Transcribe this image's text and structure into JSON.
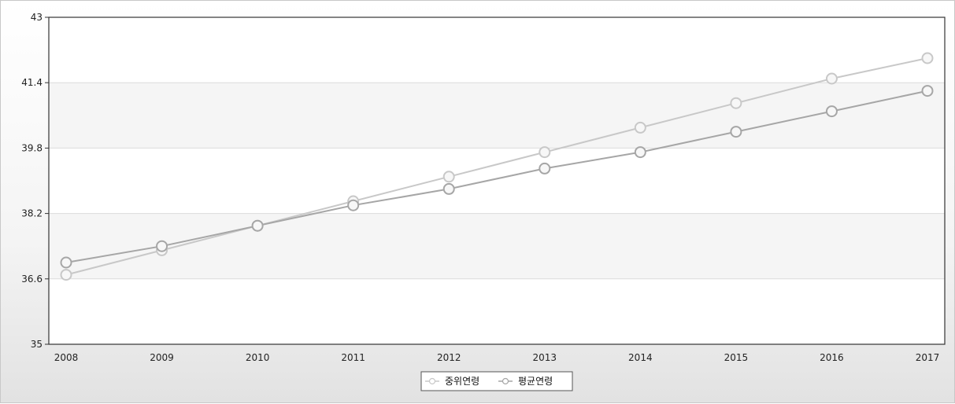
{
  "chart_data": {
    "type": "line",
    "categories": [
      "2008",
      "2009",
      "2010",
      "2011",
      "2012",
      "2013",
      "2014",
      "2015",
      "2016",
      "2017"
    ],
    "ylim": [
      35,
      43
    ],
    "yticks": [
      "35",
      "36.6",
      "38.2",
      "39.8",
      "41.4",
      "43"
    ],
    "grid": true,
    "legend_position": "bottom-center",
    "series": [
      {
        "name": "중위연령",
        "color": "#c8c8c8",
        "values": [
          36.7,
          37.3,
          37.9,
          38.5,
          39.1,
          39.7,
          40.3,
          40.9,
          41.5,
          42.0
        ]
      },
      {
        "name": "평균연령",
        "color": "#a6a6a6",
        "values": [
          37.0,
          37.4,
          37.9,
          38.4,
          38.8,
          39.3,
          39.7,
          40.2,
          40.7,
          41.2
        ]
      }
    ]
  }
}
